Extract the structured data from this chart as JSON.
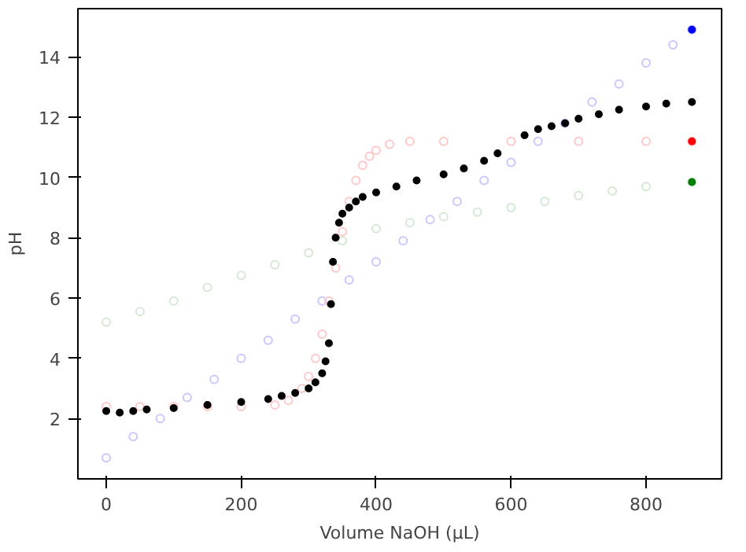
{
  "chart_data": {
    "type": "scatter",
    "xlabel": "Volume NaOH (μL)",
    "ylabel": "pH",
    "xlim": [
      -42,
      912
    ],
    "ylim": [
      0,
      15.6
    ],
    "xticks": [
      0,
      200,
      400,
      600,
      800
    ],
    "yticks": [
      2,
      4,
      6,
      8,
      10,
      12,
      14
    ],
    "grid": false,
    "marker": "circle",
    "series": [
      {
        "color": "#c8c8ff",
        "x": [
          0,
          40,
          80,
          120,
          160,
          200,
          240,
          280,
          320,
          360,
          400,
          440,
          480,
          520,
          560,
          600,
          640,
          680,
          720,
          760,
          800,
          840,
          868
        ],
        "values": [
          0.7,
          1.4,
          2.0,
          2.7,
          3.3,
          4.0,
          4.6,
          5.3,
          5.9,
          6.6,
          7.2,
          7.9,
          8.6,
          9.2,
          9.9,
          10.5,
          11.2,
          11.8,
          12.5,
          13.1,
          13.8,
          14.4,
          14.9
        ]
      },
      {
        "color": "#ffc8c8",
        "x": [
          0,
          50,
          100,
          150,
          200,
          250,
          270,
          290,
          300,
          310,
          320,
          330,
          340,
          350,
          360,
          370,
          380,
          390,
          400,
          420,
          450,
          500,
          600,
          700,
          800,
          868
        ],
        "values": [
          2.4,
          2.4,
          2.4,
          2.4,
          2.4,
          2.45,
          2.6,
          3.0,
          3.4,
          4.0,
          4.8,
          5.9,
          7.0,
          8.2,
          9.2,
          9.9,
          10.4,
          10.7,
          10.9,
          11.1,
          11.2,
          11.2,
          11.2,
          11.2,
          11.2,
          11.2
        ]
      },
      {
        "color": "#d4e8d4",
        "x": [
          0,
          50,
          100,
          150,
          200,
          250,
          300,
          350,
          400,
          450,
          500,
          550,
          600,
          650,
          700,
          750,
          800,
          868
        ],
        "values": [
          5.2,
          5.55,
          5.9,
          6.35,
          6.75,
          7.1,
          7.5,
          7.9,
          8.3,
          8.5,
          8.7,
          8.85,
          9.0,
          9.2,
          9.4,
          9.55,
          9.7,
          9.85
        ]
      },
      {
        "color": "#000000",
        "x": [
          0,
          20,
          40,
          60,
          100,
          150,
          200,
          240,
          260,
          280,
          300,
          310,
          320,
          325,
          330,
          333,
          336,
          340,
          345,
          350,
          360,
          370,
          380,
          400,
          430,
          460,
          500,
          530,
          560,
          580,
          620,
          640,
          660,
          680,
          700,
          730,
          760,
          800,
          830,
          868
        ],
        "values": [
          2.25,
          2.2,
          2.25,
          2.3,
          2.35,
          2.45,
          2.55,
          2.65,
          2.75,
          2.85,
          3.0,
          3.2,
          3.5,
          3.9,
          4.5,
          5.8,
          7.2,
          8.0,
          8.5,
          8.8,
          9.0,
          9.2,
          9.35,
          9.5,
          9.7,
          9.9,
          10.1,
          10.3,
          10.55,
          10.8,
          11.4,
          11.6,
          11.7,
          11.8,
          11.95,
          12.1,
          12.25,
          12.35,
          12.45,
          12.5
        ]
      },
      {
        "color": "#0000ff",
        "x": [
          868
        ],
        "values": [
          14.9
        ]
      },
      {
        "color": "#ff0000",
        "x": [
          868
        ],
        "values": [
          11.2
        ]
      },
      {
        "color": "#008000",
        "x": [
          868
        ],
        "values": [
          9.85
        ]
      }
    ]
  }
}
